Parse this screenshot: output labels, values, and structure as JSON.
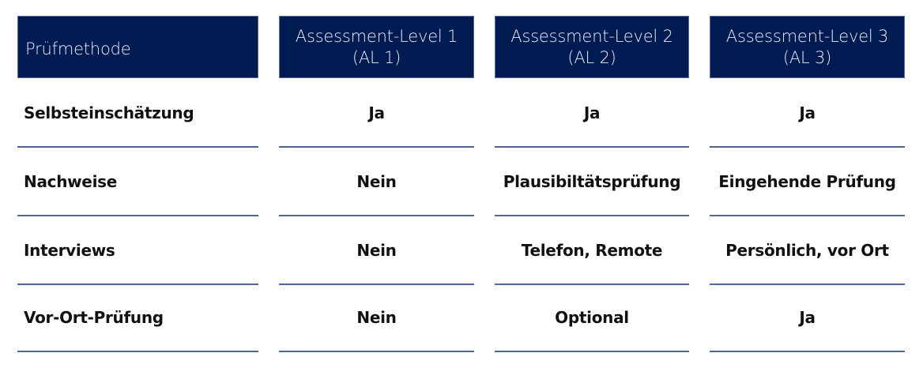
{
  "table": {
    "headers": [
      "Prüfmethode",
      "Assessment-Level 1\n(AL 1)",
      "Assessment-Level 2\n(AL 2)",
      "Assessment-Level 3\n(AL 3)"
    ],
    "header_lines": [
      [
        "Prüfmethode"
      ],
      [
        "Assessment-Level 1",
        "(AL 1)"
      ],
      [
        "Assessment-Level 2",
        "(AL 2)"
      ],
      [
        "Assessment-Level 3",
        "(AL 3)"
      ]
    ],
    "rows": [
      [
        "Selbsteinschätzung",
        "Ja",
        "Ja",
        "Ja"
      ],
      [
        "Nachweise",
        "Nein",
        "Plausibiltätsprüfung",
        "Eingehende Prüfung"
      ],
      [
        "Interviews",
        "Nein",
        "Telefon, Remote",
        "Persönlich, vor Ort"
      ],
      [
        "Vor-Ort-Prüfung",
        "Nein",
        "Optional",
        "Ja"
      ]
    ]
  },
  "colors": {
    "header_bg": "#001a52",
    "rule": "#4e6597"
  }
}
